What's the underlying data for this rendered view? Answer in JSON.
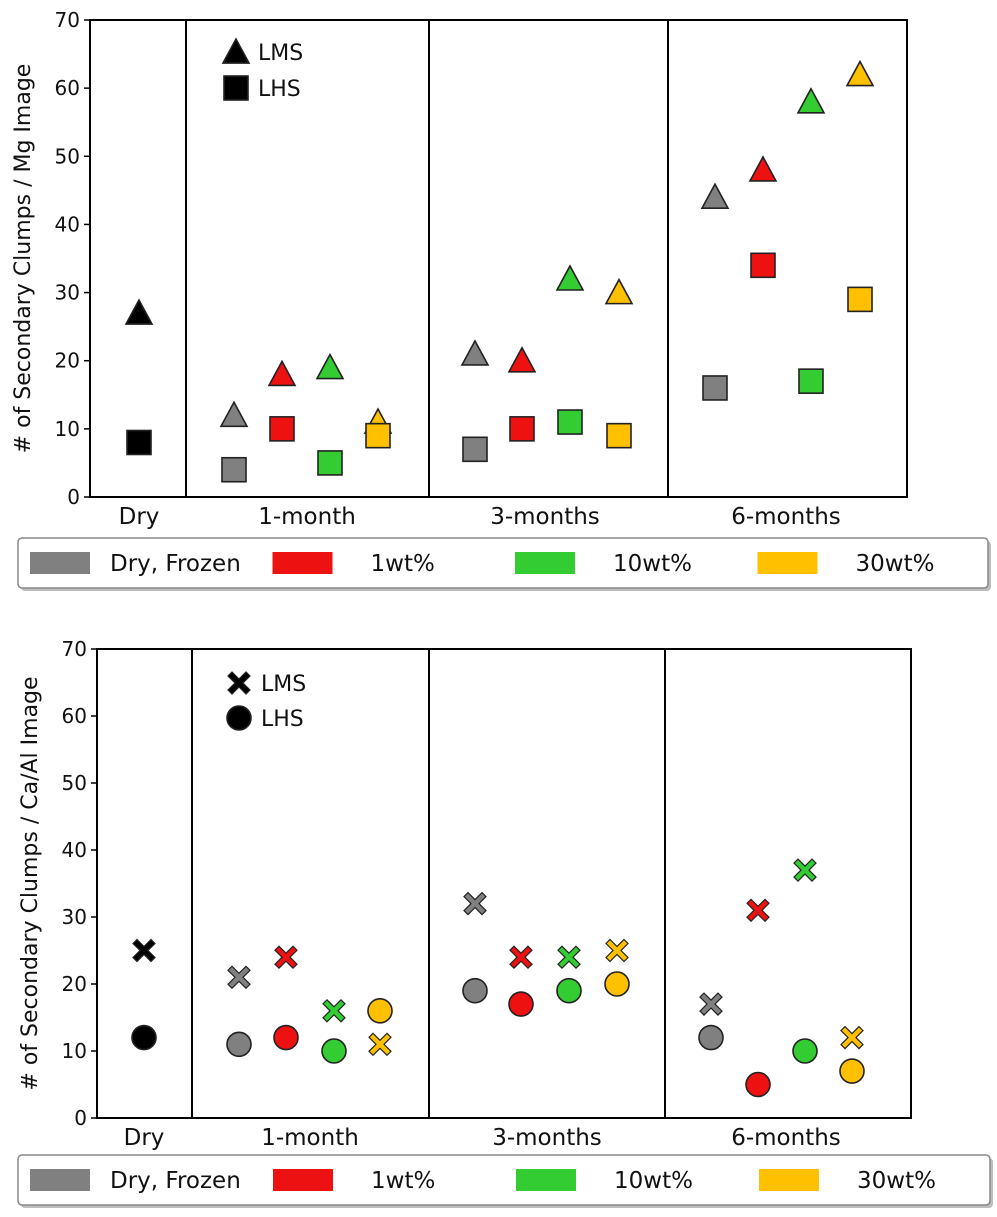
{
  "colors": {
    "dry_frozen": "#808080",
    "wt1": "#ee1111",
    "wt10": "#33cc33",
    "wt30": "#ffc000",
    "dry_point": "#000000",
    "edge": "#222222"
  },
  "legend": {
    "items": [
      {
        "label": "Dry, Frozen",
        "color_key": "dry_frozen"
      },
      {
        "label": "1wt%",
        "color_key": "wt1"
      },
      {
        "label": "10wt%",
        "color_key": "wt10"
      },
      {
        "label": "30wt%",
        "color_key": "wt30"
      }
    ]
  },
  "chart_data": [
    {
      "type": "scatter",
      "ylabel": "# of Secondary Clumps / Mg Image",
      "ylim": [
        0,
        70
      ],
      "yticks": [
        0,
        10,
        20,
        30,
        40,
        50,
        60,
        70
      ],
      "groups": [
        "Dry",
        "1-month",
        "3-months",
        "6-months"
      ],
      "marker_legend": [
        {
          "label": "LMS",
          "marker": "triangle"
        },
        {
          "label": "LHS",
          "marker": "square"
        }
      ],
      "series": [
        {
          "marker": "triangle",
          "values": {
            "Dry": 27
          }
        },
        {
          "marker": "square",
          "values": {
            "Dry": 8
          }
        },
        {
          "marker": "triangle",
          "legend": "Dry, Frozen",
          "values": {
            "1-month": 12,
            "3-months": 21,
            "6-months": 44
          }
        },
        {
          "marker": "square",
          "legend": "Dry, Frozen",
          "values": {
            "1-month": 4,
            "3-months": 7,
            "6-months": 16
          }
        },
        {
          "marker": "triangle",
          "legend": "1wt%",
          "values": {
            "1-month": 18,
            "3-months": 20,
            "6-months": 48
          }
        },
        {
          "marker": "square",
          "legend": "1wt%",
          "values": {
            "1-month": 10,
            "3-months": 10,
            "6-months": 34
          }
        },
        {
          "marker": "triangle",
          "legend": "10wt%",
          "values": {
            "1-month": 19,
            "3-months": 32,
            "6-months": 58
          }
        },
        {
          "marker": "square",
          "legend": "10wt%",
          "values": {
            "1-month": 5,
            "3-months": 11,
            "6-months": 17
          }
        },
        {
          "marker": "triangle",
          "legend": "30wt%",
          "values": {
            "1-month": 11,
            "3-months": 30,
            "6-months": 62
          }
        },
        {
          "marker": "square",
          "legend": "30wt%",
          "values": {
            "1-month": 9,
            "3-months": 9,
            "6-months": 29
          }
        }
      ]
    },
    {
      "type": "scatter",
      "ylabel": "# of Secondary Clumps / Ca/Al Image",
      "ylim": [
        0,
        70
      ],
      "yticks": [
        0,
        10,
        20,
        30,
        40,
        50,
        60,
        70
      ],
      "groups": [
        "Dry",
        "1-month",
        "3-months",
        "6-months"
      ],
      "marker_legend": [
        {
          "label": "LMS",
          "marker": "x"
        },
        {
          "label": "LHS",
          "marker": "circle"
        }
      ],
      "series": [
        {
          "marker": "x",
          "values": {
            "Dry": 25
          }
        },
        {
          "marker": "circle",
          "values": {
            "Dry": 12
          }
        },
        {
          "marker": "x",
          "legend": "Dry, Frozen",
          "values": {
            "1-month": 21,
            "3-months": 32,
            "6-months": 17
          }
        },
        {
          "marker": "circle",
          "legend": "Dry, Frozen",
          "values": {
            "1-month": 11,
            "3-months": 19,
            "6-months": 12
          }
        },
        {
          "marker": "x",
          "legend": "1wt%",
          "values": {
            "1-month": 24,
            "3-months": 24,
            "6-months": 31
          }
        },
        {
          "marker": "circle",
          "legend": "1wt%",
          "values": {
            "1-month": 12,
            "3-months": 17,
            "6-months": 5
          }
        },
        {
          "marker": "x",
          "legend": "10wt%",
          "values": {
            "1-month": 16,
            "3-months": 24,
            "6-months": 37
          }
        },
        {
          "marker": "circle",
          "legend": "10wt%",
          "values": {
            "1-month": 10,
            "3-months": 19,
            "6-months": 10
          }
        },
        {
          "marker": "x",
          "legend": "30wt%",
          "values": {
            "1-month": 11,
            "3-months": 25,
            "6-months": 12
          }
        },
        {
          "marker": "circle",
          "legend": "30wt%",
          "values": {
            "1-month": 16,
            "3-months": 20,
            "6-months": 7
          }
        }
      ]
    }
  ]
}
